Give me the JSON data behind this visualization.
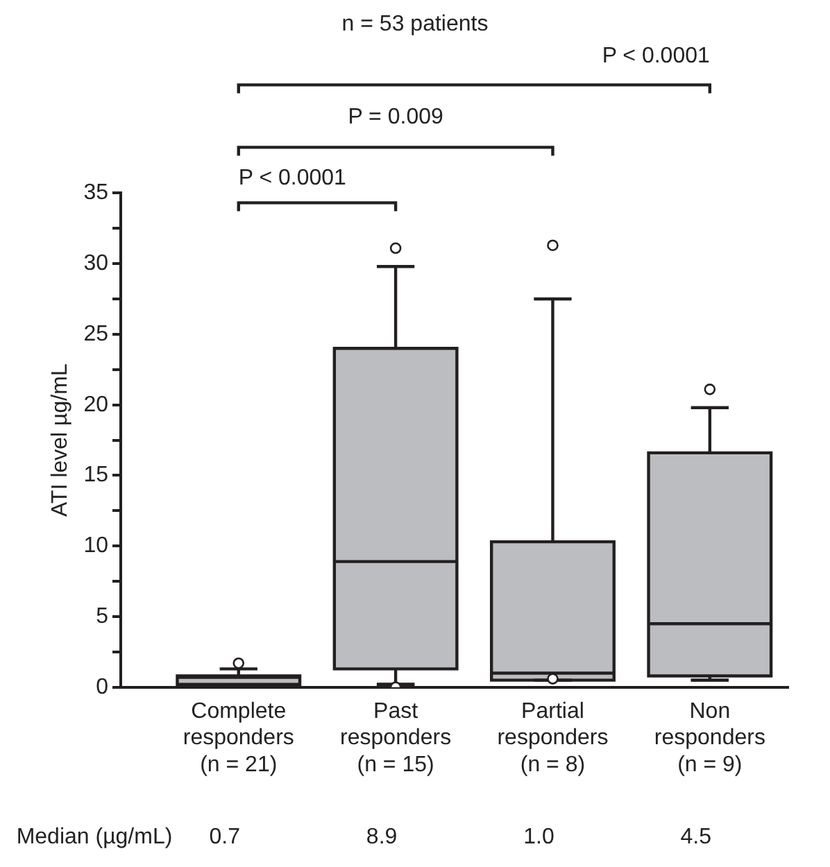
{
  "chart_data": {
    "type": "box",
    "title": "n = 53 patients",
    "ylabel": "ATI level µg/mL",
    "categories": [
      "Complete\nresponders\n(n = 21)",
      "Past\nresponders\n(n = 15)",
      "Partial\nresponders\n(n = 8)",
      "Non\nresponders\n(n = 9)"
    ],
    "color": "#bcbdc0",
    "boxes": [
      {
        "low": 0.1,
        "q1": 0.2,
        "median": 0.7,
        "q3": 0.8,
        "high": 1.3,
        "outliers": [
          1.7
        ]
      },
      {
        "low": 0.2,
        "q1": 1.3,
        "median": 8.9,
        "q3": 24.0,
        "high": 29.8,
        "outliers": [
          31.1,
          0
        ]
      },
      {
        "low": 0.5,
        "q1": 0.5,
        "median": 1.0,
        "q3": 10.3,
        "high": 27.5,
        "outliers": [
          31.3,
          0.6
        ]
      },
      {
        "low": 0.5,
        "q1": 0.8,
        "median": 4.5,
        "q3": 16.6,
        "high": 19.8,
        "outliers": [
          21.1
        ]
      }
    ],
    "ylim": [
      0,
      35
    ],
    "yticks": [
      0,
      {
        "value": 2.5,
        "label": null
      },
      5,
      {
        "value": 7.5,
        "label": null
      },
      10,
      {
        "value": 12.5,
        "label": null
      },
      15,
      {
        "value": 17.5,
        "label": null
      },
      20,
      {
        "value": 22.5,
        "label": null
      },
      25,
      {
        "value": 27.5,
        "label": null
      },
      30,
      {
        "value": 32.5,
        "label": null
      },
      35
    ],
    "marker": "circle",
    "grid": false,
    "annotations": [
      "P < 0.0001",
      "P = 0.009",
      "P < 0.0001",
      "Median (µg/mL)",
      "0.7",
      "8.9",
      "1.0",
      "4.5"
    ]
  }
}
